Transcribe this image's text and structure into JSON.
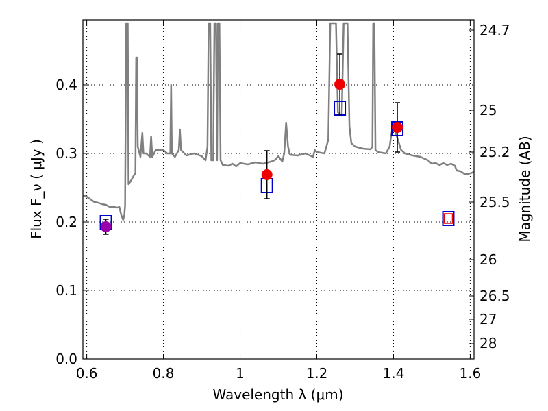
{
  "chart_data": {
    "type": "line",
    "xlabel": "Wavelength  λ (μm)",
    "ylabel": "Flux  F_ν  ( μJy )",
    "ylabel_right": "Magnitude (AB)",
    "xlim": [
      0.59,
      1.61
    ],
    "ylim": [
      0.0,
      0.495
    ],
    "grid": true,
    "x_ticks": [
      0.6,
      0.8,
      1.0,
      1.2,
      1.4,
      1.6
    ],
    "x_tick_labels": [
      "0.6",
      "0.8",
      "1",
      "1.2",
      "1.4",
      "1.6"
    ],
    "y_ticks": [
      0.0,
      0.1,
      0.2,
      0.3,
      0.4
    ],
    "y_tick_labels": [
      "0.0",
      "0.1",
      "0.2",
      "0.3",
      "0.4"
    ],
    "right_ticks": [
      {
        "label": "24.7",
        "flux": 0.48
      },
      {
        "label": "25",
        "flux": 0.363
      },
      {
        "label": "25.2",
        "flux": 0.302
      },
      {
        "label": "25.5",
        "flux": 0.229
      },
      {
        "label": "26",
        "flux": 0.145
      },
      {
        "label": "26.5",
        "flux": 0.092
      },
      {
        "label": "27",
        "flux": 0.058
      },
      {
        "label": "28",
        "flux": 0.023
      }
    ],
    "colors": {
      "template": "#808080",
      "model_box": "#0000cc",
      "observed": "#ee0000",
      "observed_first": "#9900aa",
      "errorbar": "#000000",
      "grid": "#000000"
    },
    "series": [
      {
        "kind": "model_spectrum",
        "points": [
          [
            0.59,
            0.239
          ],
          [
            0.6,
            0.237
          ],
          [
            0.61,
            0.233
          ],
          [
            0.62,
            0.229
          ],
          [
            0.63,
            0.228
          ],
          [
            0.64,
            0.226
          ],
          [
            0.65,
            0.225
          ],
          [
            0.66,
            0.222
          ],
          [
            0.67,
            0.222
          ],
          [
            0.68,
            0.221
          ],
          [
            0.685,
            0.222
          ],
          [
            0.69,
            0.21
          ],
          [
            0.695,
            0.203
          ],
          [
            0.698,
            0.21
          ],
          [
            0.7,
            0.224
          ],
          [
            0.703,
            0.49
          ],
          [
            0.707,
            0.49
          ],
          [
            0.709,
            0.255
          ],
          [
            0.715,
            0.26
          ],
          [
            0.72,
            0.265
          ],
          [
            0.725,
            0.27
          ],
          [
            0.727,
            0.27
          ],
          [
            0.729,
            0.44
          ],
          [
            0.731,
            0.44
          ],
          [
            0.733,
            0.31
          ],
          [
            0.74,
            0.295
          ],
          [
            0.745,
            0.33
          ],
          [
            0.748,
            0.3
          ],
          [
            0.755,
            0.3
          ],
          [
            0.765,
            0.295
          ],
          [
            0.768,
            0.325
          ],
          [
            0.771,
            0.295
          ],
          [
            0.78,
            0.305
          ],
          [
            0.8,
            0.305
          ],
          [
            0.81,
            0.3
          ],
          [
            0.818,
            0.3
          ],
          [
            0.82,
            0.4
          ],
          [
            0.822,
            0.3
          ],
          [
            0.83,
            0.295
          ],
          [
            0.84,
            0.305
          ],
          [
            0.843,
            0.335
          ],
          [
            0.846,
            0.305
          ],
          [
            0.86,
            0.297
          ],
          [
            0.88,
            0.3
          ],
          [
            0.9,
            0.296
          ],
          [
            0.91,
            0.29
          ],
          [
            0.915,
            0.31
          ],
          [
            0.918,
            0.49
          ],
          [
            0.922,
            0.49
          ],
          [
            0.925,
            0.29
          ],
          [
            0.93,
            0.29
          ],
          [
            0.933,
            0.49
          ],
          [
            0.937,
            0.49
          ],
          [
            0.94,
            0.29
          ],
          [
            0.942,
            0.49
          ],
          [
            0.946,
            0.49
          ],
          [
            0.949,
            0.29
          ],
          [
            0.955,
            0.283
          ],
          [
            0.97,
            0.282
          ],
          [
            0.98,
            0.285
          ],
          [
            0.99,
            0.281
          ],
          [
            1.0,
            0.286
          ],
          [
            1.02,
            0.284
          ],
          [
            1.04,
            0.287
          ],
          [
            1.06,
            0.285
          ],
          [
            1.08,
            0.288
          ],
          [
            1.09,
            0.29
          ],
          [
            1.1,
            0.296
          ],
          [
            1.11,
            0.288
          ],
          [
            1.115,
            0.3
          ],
          [
            1.12,
            0.345
          ],
          [
            1.125,
            0.31
          ],
          [
            1.13,
            0.298
          ],
          [
            1.15,
            0.297
          ],
          [
            1.17,
            0.3
          ],
          [
            1.19,
            0.295
          ],
          [
            1.195,
            0.305
          ],
          [
            1.2,
            0.302
          ],
          [
            1.22,
            0.3
          ],
          [
            1.23,
            0.32
          ],
          [
            1.235,
            0.49
          ],
          [
            1.25,
            0.49
          ],
          [
            1.255,
            0.36
          ],
          [
            1.265,
            0.355
          ],
          [
            1.27,
            0.49
          ],
          [
            1.28,
            0.49
          ],
          [
            1.285,
            0.34
          ],
          [
            1.29,
            0.315
          ],
          [
            1.3,
            0.31
          ],
          [
            1.32,
            0.307
          ],
          [
            1.34,
            0.306
          ],
          [
            1.345,
            0.31
          ],
          [
            1.347,
            0.49
          ],
          [
            1.35,
            0.49
          ],
          [
            1.353,
            0.305
          ],
          [
            1.36,
            0.302
          ],
          [
            1.38,
            0.3
          ],
          [
            1.39,
            0.31
          ],
          [
            1.395,
            0.33
          ],
          [
            1.4,
            0.34
          ],
          [
            1.42,
            0.305
          ],
          [
            1.43,
            0.3
          ],
          [
            1.45,
            0.297
          ],
          [
            1.47,
            0.295
          ],
          [
            1.49,
            0.29
          ],
          [
            1.5,
            0.285
          ],
          [
            1.51,
            0.286
          ],
          [
            1.52,
            0.283
          ],
          [
            1.53,
            0.286
          ],
          [
            1.54,
            0.283
          ],
          [
            1.55,
            0.285
          ],
          [
            1.56,
            0.282
          ],
          [
            1.565,
            0.275
          ],
          [
            1.575,
            0.274
          ],
          [
            1.585,
            0.27
          ],
          [
            1.595,
            0.27
          ],
          [
            1.61,
            0.273
          ]
        ]
      },
      {
        "kind": "model_photometry",
        "points": [
          {
            "x": 0.65,
            "y": 0.199
          },
          {
            "x": 1.07,
            "y": 0.253
          },
          {
            "x": 1.26,
            "y": 0.366
          },
          {
            "x": 1.41,
            "y": 0.336
          },
          {
            "x": 1.543,
            "y": 0.205
          }
        ]
      },
      {
        "kind": "observed_photometry",
        "points": [
          {
            "x": 0.65,
            "y": 0.193,
            "yerr": 0.011
          },
          {
            "x": 1.07,
            "y": 0.269,
            "yerr": 0.035
          },
          {
            "x": 1.26,
            "y": 0.401,
            "yerr": 0.044
          },
          {
            "x": 1.41,
            "y": 0.338,
            "yerr": 0.036
          },
          {
            "x": 1.543,
            "y": 0.205
          }
        ]
      }
    ]
  }
}
